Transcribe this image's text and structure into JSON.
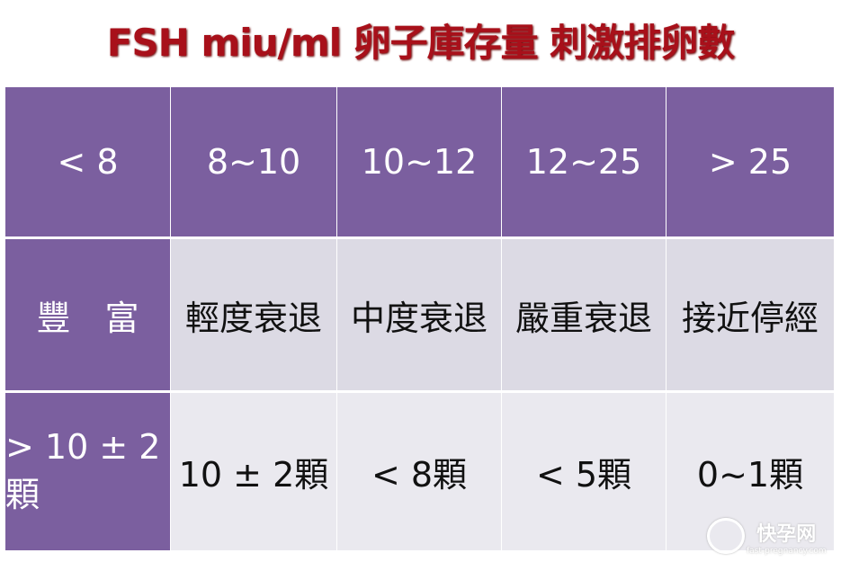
{
  "title": "FSH miu/ml 卵子庫存量 刺激排卵數",
  "table": {
    "header": [
      "< 8",
      "8~10",
      "10~12",
      "12~25",
      "> 25"
    ],
    "reserve": [
      "豐　富",
      "輕度衰退",
      "中度衰退",
      "嚴重衰退",
      "接近停經"
    ],
    "ovulation_count": [
      "> 10 ± 2顆",
      "10 ± 2顆",
      "< 8顆",
      "< 5顆",
      "0~1顆"
    ]
  },
  "colors": {
    "title": "#a8101a",
    "header": "#7b5f9f",
    "row2": "#dcdae4",
    "row3": "#eae9ef"
  },
  "watermark": {
    "name": "快孕网",
    "url": "fast-pregnancy.com"
  }
}
